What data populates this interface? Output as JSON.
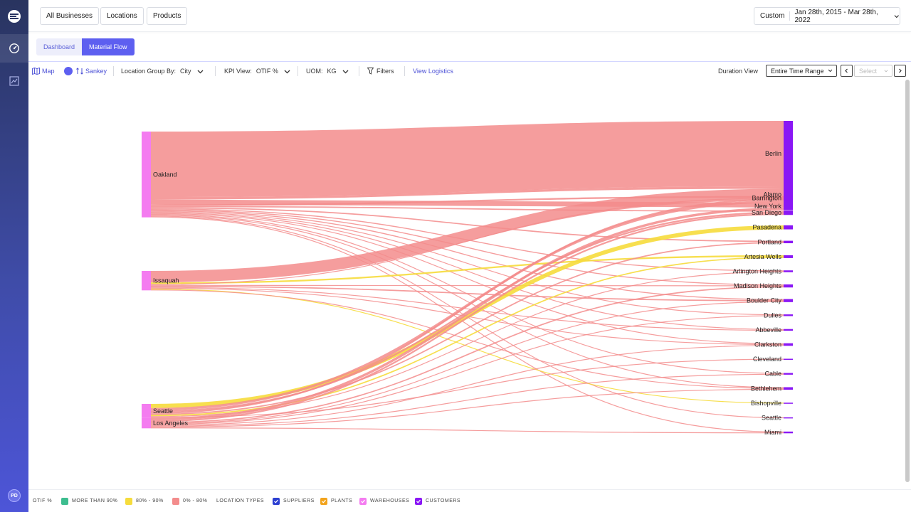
{
  "header": {
    "chips": [
      "All Businesses",
      "Locations",
      "Products"
    ],
    "date": {
      "mode": "Custom",
      "range": "Jan 28th, 2015 - Mar 28th, 2022"
    }
  },
  "tabs": [
    {
      "label": "Dashboard",
      "active": false
    },
    {
      "label": "Material Flow",
      "active": true
    }
  ],
  "toolbar": {
    "map_label": "Map",
    "sankey_label": "Sankey",
    "group_by_label": "Location Group By:",
    "group_by_value": "City",
    "kpi_label": "KPI View:",
    "kpi_value": "OTIF %",
    "uom_label": "UOM:",
    "uom_value": "KG",
    "filters_label": "Filters",
    "view_logistics": "View Logistics",
    "duration_label": "Duration View",
    "duration_value": "Entire Time Range",
    "period_placeholder": "Select"
  },
  "user": {
    "initials": "PD"
  },
  "colors": {
    "high": "#3dbd8f",
    "mid": "#f6dc3c",
    "low": "#f38c8c",
    "supplier": "#2c3fd1",
    "plant": "#f2a31c",
    "warehouse": "#f47cf0",
    "customer": "#8a17f5"
  },
  "chart_data": {
    "type": "sankey",
    "sources": [
      "Oakland",
      "Issaquah",
      "Seattle",
      "Los Angeles"
    ],
    "targets": [
      "Berlin",
      "Alamo",
      "New York",
      "Barrington",
      "San Diego",
      "Pasadena",
      "Portland",
      "Artesia Wells",
      "Arlington Heights",
      "Madison Heights",
      "Boulder City",
      "Dulles",
      "Abbeville",
      "Clarkston",
      "Cleveland",
      "Cable",
      "Bethlehem",
      "Bishopville",
      "Seattle",
      "Miami"
    ],
    "links": [
      {
        "source": "Oakland",
        "target": "Berlin",
        "value": 80,
        "band": "low"
      },
      {
        "source": "Oakland",
        "target": "Alamo",
        "value": 3,
        "band": "low"
      },
      {
        "source": "Oakland",
        "target": "New York",
        "value": 6,
        "band": "low"
      },
      {
        "source": "Oakland",
        "target": "Barrington",
        "value": 2,
        "band": "low"
      },
      {
        "source": "Oakland",
        "target": "San Diego",
        "value": 1.5,
        "band": "low"
      },
      {
        "source": "Oakland",
        "target": "Portland",
        "value": 1.5,
        "band": "low"
      },
      {
        "source": "Oakland",
        "target": "Arlington Heights",
        "value": 1.2,
        "band": "low"
      },
      {
        "source": "Oakland",
        "target": "Madison Heights",
        "value": 1.2,
        "band": "low"
      },
      {
        "source": "Oakland",
        "target": "Boulder City",
        "value": 1.2,
        "band": "low"
      },
      {
        "source": "Oakland",
        "target": "Dulles",
        "value": 1,
        "band": "low"
      },
      {
        "source": "Oakland",
        "target": "Abbeville",
        "value": 1,
        "band": "low"
      },
      {
        "source": "Oakland",
        "target": "Clarkston",
        "value": 1,
        "band": "low"
      },
      {
        "source": "Oakland",
        "target": "Cable",
        "value": 0.8,
        "band": "low"
      },
      {
        "source": "Oakland",
        "target": "Bethlehem",
        "value": 0.8,
        "band": "low"
      },
      {
        "source": "Oakland",
        "target": "Seattle",
        "value": 0.8,
        "band": "low"
      },
      {
        "source": "Oakland",
        "target": "Miami",
        "value": 0.8,
        "band": "low"
      },
      {
        "source": "Issaquah",
        "target": "Alamo",
        "value": 14,
        "band": "low"
      },
      {
        "source": "Issaquah",
        "target": "Artesia Wells",
        "value": 2,
        "band": "mid"
      },
      {
        "source": "Issaquah",
        "target": "Barrington",
        "value": 1,
        "band": "low"
      },
      {
        "source": "Issaquah",
        "target": "Madison Heights",
        "value": 1,
        "band": "low"
      },
      {
        "source": "Issaquah",
        "target": "Boulder City",
        "value": 1.5,
        "band": "low"
      },
      {
        "source": "Issaquah",
        "target": "Abbeville",
        "value": 0.8,
        "band": "low"
      },
      {
        "source": "Issaquah",
        "target": "Clarkston",
        "value": 1,
        "band": "low"
      },
      {
        "source": "Issaquah",
        "target": "Bishopville",
        "value": 0.6,
        "band": "mid"
      },
      {
        "source": "Issaquah",
        "target": "Bethlehem",
        "value": 0.8,
        "band": "low"
      },
      {
        "source": "Seattle",
        "target": "Pasadena",
        "value": 5,
        "band": "mid"
      },
      {
        "source": "Seattle",
        "target": "Alamo",
        "value": 3,
        "band": "low"
      },
      {
        "source": "Seattle",
        "target": "San Diego",
        "value": 2,
        "band": "low"
      },
      {
        "source": "Seattle",
        "target": "Barrington",
        "value": 2,
        "band": "low"
      },
      {
        "source": "Seattle",
        "target": "Portland",
        "value": 1.5,
        "band": "low"
      },
      {
        "source": "Seattle",
        "target": "Artesia Wells",
        "value": 1.5,
        "band": "mid"
      },
      {
        "source": "Seattle",
        "target": "Arlington Heights",
        "value": 1,
        "band": "low"
      },
      {
        "source": "Seattle",
        "target": "Cleveland",
        "value": 0.8,
        "band": "low"
      },
      {
        "source": "Los Angeles",
        "target": "New York",
        "value": 3,
        "band": "low"
      },
      {
        "source": "Los Angeles",
        "target": "San Diego",
        "value": 2,
        "band": "low"
      },
      {
        "source": "Los Angeles",
        "target": "Madison Heights",
        "value": 1.5,
        "band": "low"
      },
      {
        "source": "Los Angeles",
        "target": "Boulder City",
        "value": 1,
        "band": "low"
      },
      {
        "source": "Los Angeles",
        "target": "Dulles",
        "value": 1,
        "band": "low"
      },
      {
        "source": "Los Angeles",
        "target": "Clarkston",
        "value": 1,
        "band": "low"
      },
      {
        "source": "Los Angeles",
        "target": "Cable",
        "value": 0.8,
        "band": "low"
      },
      {
        "source": "Los Angeles",
        "target": "Bethlehem",
        "value": 0.8,
        "band": "low"
      },
      {
        "source": "Los Angeles",
        "target": "Miami",
        "value": 0.8,
        "band": "low"
      }
    ]
  },
  "legend": {
    "otif_label": "OTIF %",
    "otif_items": [
      {
        "label": "More than 90%",
        "color_key": "high"
      },
      {
        "label": "80% - 90%",
        "color_key": "mid"
      },
      {
        "label": "0% - 80%",
        "color_key": "low"
      }
    ],
    "types_label": "Location Types",
    "type_items": [
      {
        "label": "Suppliers",
        "color_key": "supplier"
      },
      {
        "label": "Plants",
        "color_key": "plant"
      },
      {
        "label": "Warehouses",
        "color_key": "warehouse"
      },
      {
        "label": "Customers",
        "color_key": "customer"
      }
    ]
  }
}
